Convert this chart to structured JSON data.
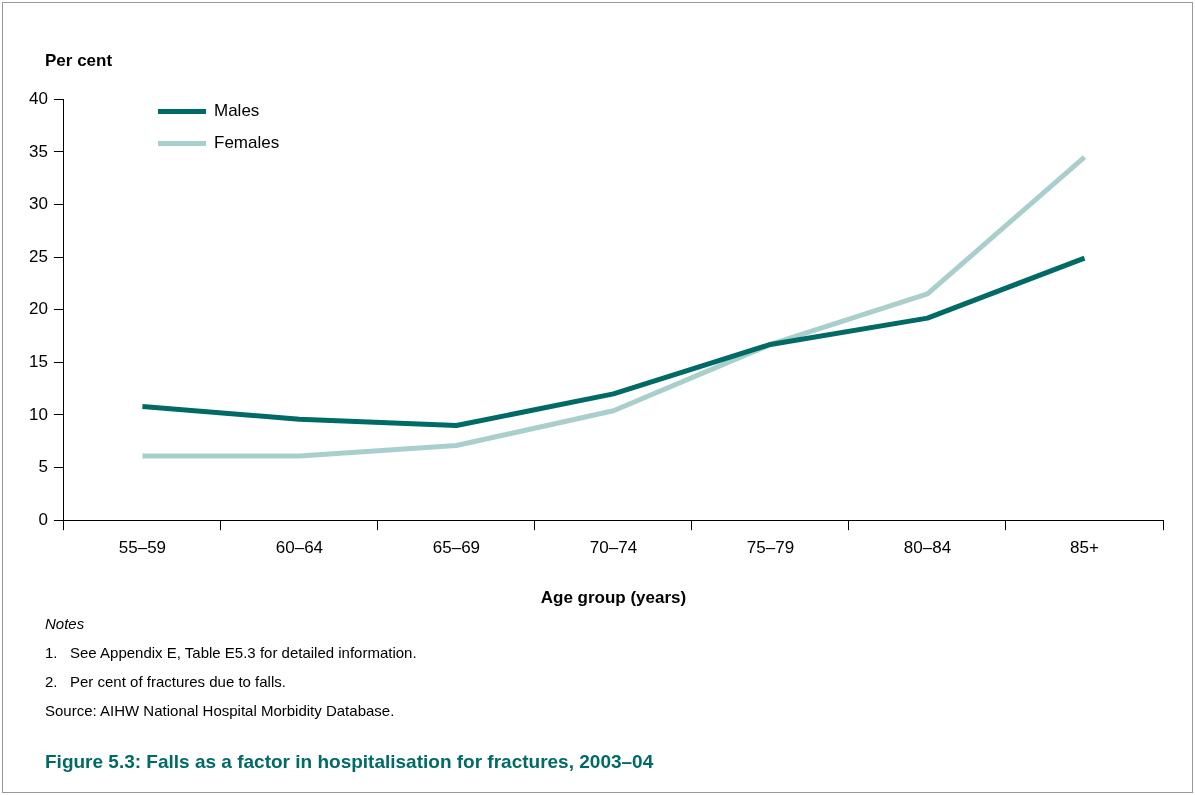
{
  "chart_data": {
    "type": "line",
    "title": "Figure 5.3: Falls as a factor in hospitalisation for fractures, 2003–04",
    "xlabel": "Age group (years)",
    "ylabel": "Per cent",
    "categories": [
      "55–59",
      "60–64",
      "65–69",
      "70–74",
      "75–79",
      "80–84",
      "85+"
    ],
    "series": [
      {
        "name": "Males",
        "color": "#006a66",
        "values": [
          10.8,
          9.6,
          9.0,
          12.0,
          16.7,
          19.2,
          24.9
        ]
      },
      {
        "name": "Females",
        "color": "#a9cfcc",
        "values": [
          6.1,
          6.1,
          7.1,
          10.4,
          16.7,
          21.5,
          34.5
        ]
      }
    ],
    "ylim": [
      0,
      40
    ],
    "yticks": [
      0,
      5,
      10,
      15,
      20,
      25,
      30,
      35,
      40
    ],
    "grid": false,
    "legend": "top left",
    "marker": "none",
    "line_style": "solid",
    "annotations": [
      "Notes",
      "1.   See Appendix E, Table E5.3 for detailed information.",
      "2.   Per cent of fractures due to falls.",
      "Source: AIHW National Hospital Morbidity Database."
    ]
  }
}
